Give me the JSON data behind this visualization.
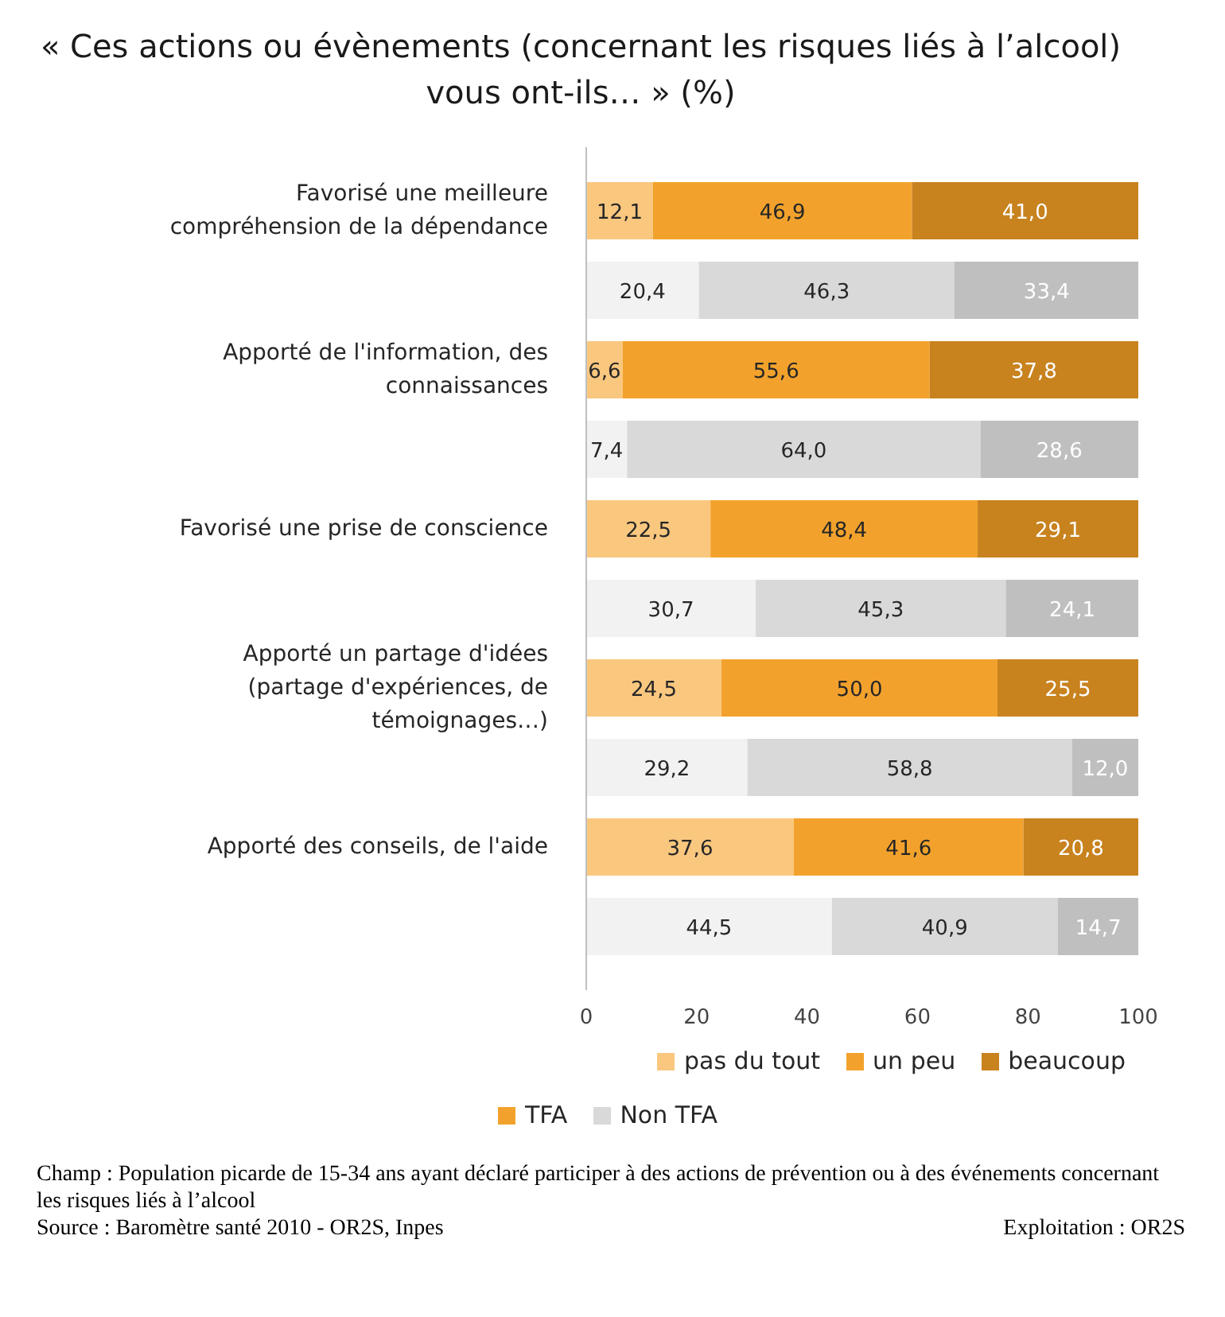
{
  "chart_data": {
    "type": "bar",
    "orientation": "horizontal",
    "stacked": true,
    "title": "« Ces actions ou évènements (concernant les risques liés à l’alcool) vous ont-ils… » (%)",
    "categories": [
      "Favorisé une meilleure compréhension de la dépendance",
      null,
      "Apporté de l'information, des connaissances",
      null,
      "Favorisé une prise de conscience",
      null,
      "Apporté un partage d'idées (partage d'expériences, de témoignages…)",
      null,
      "Apporté des conseils, de l'aide",
      null
    ],
    "series": [
      {
        "name": "pas du tout",
        "colors": [
          "#fac77f",
          "#f2f2f2",
          "#fac77f",
          "#f2f2f2",
          "#fac77f",
          "#f2f2f2",
          "#fac77f",
          "#f2f2f2",
          "#fac77f",
          "#f2f2f2"
        ],
        "values": [
          12.1,
          20.4,
          6.6,
          7.4,
          22.5,
          30.7,
          24.5,
          29.2,
          37.6,
          44.5
        ],
        "value_labels": [
          "12,1",
          "20,4",
          "6,6",
          "7,4",
          "22,5",
          "30,7",
          "24,5",
          "29,2",
          "37,6",
          "44,5"
        ]
      },
      {
        "name": "un peu",
        "colors": [
          "#f2a22c",
          "#d9d9d9",
          "#f2a22c",
          "#d9d9d9",
          "#f2a22c",
          "#d9d9d9",
          "#f2a22c",
          "#d9d9d9",
          "#f2a22c",
          "#d9d9d9"
        ],
        "values": [
          46.9,
          46.3,
          55.6,
          64.0,
          48.4,
          45.3,
          50.0,
          58.8,
          41.6,
          40.9
        ],
        "value_labels": [
          "46,9",
          "46,3",
          "55,6",
          "64,0",
          "48,4",
          "45,3",
          "50,0",
          "58,8",
          "41,6",
          "40,9"
        ]
      },
      {
        "name": "beaucoup",
        "colors": [
          "#c8821e",
          "#bfbfbf",
          "#c8821e",
          "#bfbfbf",
          "#c8821e",
          "#bfbfbf",
          "#c8821e",
          "#bfbfbf",
          "#c8821e",
          "#bfbfbf"
        ],
        "values": [
          41.0,
          33.4,
          37.8,
          28.6,
          29.1,
          24.1,
          25.5,
          12.0,
          20.8,
          14.7
        ],
        "value_labels": [
          "41,0",
          "33,4",
          "37,8",
          "28,6",
          "29,1",
          "24,1",
          "25,5",
          "12,0",
          "20,8",
          "14,7"
        ]
      }
    ],
    "xlim": [
      0,
      100
    ],
    "xticks": [
      0,
      20,
      40,
      60,
      80,
      100
    ],
    "grid": false,
    "legend": "bottom",
    "annotations": [
      "TFA",
      "Non TFA",
      "Champ : Population picarde de 15-34 ans ayant déclaré participer à des actions de prévention ou à des événements concernant les risques liés à l’alcool",
      "Source : Baromètre santé 2010 - OR2S, Inpes",
      "Exploitation : OR2S"
    ]
  }
}
